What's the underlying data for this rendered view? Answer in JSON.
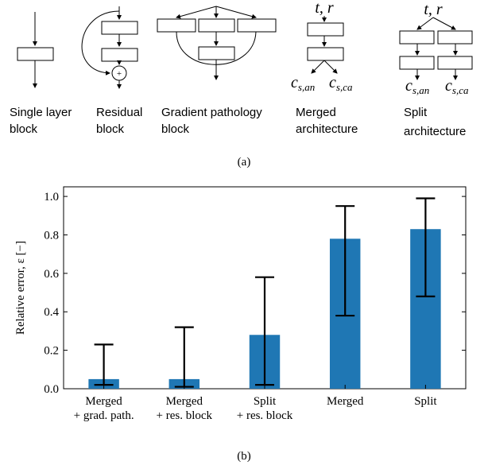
{
  "panel_a": {
    "caption": "(a)",
    "blocks": [
      {
        "label_lines": [
          "Single layer",
          "block"
        ]
      },
      {
        "label_lines": [
          "Residual",
          "block"
        ]
      },
      {
        "label_lines": [
          "Gradient pathology",
          "block"
        ]
      },
      {
        "label_lines": [
          "Merged",
          "architecture"
        ]
      },
      {
        "label_lines": [
          "Split",
          "architecture"
        ]
      }
    ],
    "plus_symbol": "+",
    "inputs_label": "t, r",
    "output_labels": [
      "c_{s,an}",
      "c_{s,ca}"
    ],
    "output_main": "c",
    "output_subs": [
      "s,an",
      "s,ca"
    ]
  },
  "panel_b": {
    "caption": "(b)"
  },
  "chart_data": {
    "type": "bar",
    "categories": [
      [
        "Merged",
        "+ grad. path."
      ],
      [
        "Merged",
        "+ res. block"
      ],
      [
        "Split",
        "+ res. block"
      ],
      [
        "Merged"
      ],
      [
        "Split"
      ]
    ],
    "values": [
      0.05,
      0.05,
      0.28,
      0.78,
      0.83
    ],
    "error_low": [
      0.02,
      0.01,
      0.02,
      0.38,
      0.48
    ],
    "error_high": [
      0.23,
      0.32,
      0.58,
      0.95,
      0.99
    ],
    "ylabel": "Relative error, ε [−]",
    "xlabel": "",
    "ylim": [
      0,
      1.05
    ],
    "yticks": [
      0.0,
      0.2,
      0.4,
      0.6,
      0.8,
      1.0
    ],
    "ytick_labels": [
      "0.0",
      "0.2",
      "0.4",
      "0.6",
      "0.8",
      "1.0"
    ],
    "bar_color": "#1f77b4",
    "grid": false
  }
}
